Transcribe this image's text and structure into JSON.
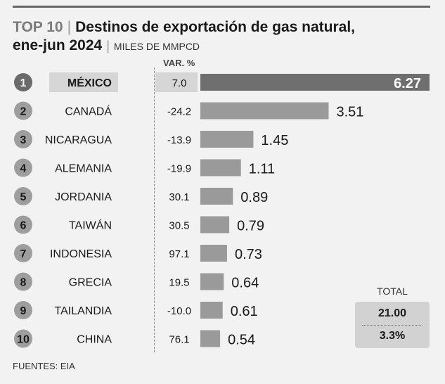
{
  "header": {
    "top_label": "TOP 10",
    "title": "Destinos de exportación de gas natural,",
    "subtitle": "ene-jun 2024",
    "unit": "MILES DE MMPCD",
    "separator": "|"
  },
  "var_header": "VAR. %",
  "chart_data": {
    "type": "bar",
    "orientation": "horizontal",
    "categories": [
      "MÉXICO",
      "CANADÁ",
      "NICARAGUA",
      "ALEMANIA",
      "JORDANIA",
      "TAIWÁN",
      "INDONESIA",
      "GRECIA",
      "TAILANDIA",
      "CHINA"
    ],
    "ranks": [
      "1",
      "2",
      "3",
      "4",
      "5",
      "6",
      "7",
      "8",
      "9",
      "10"
    ],
    "values": [
      6.27,
      3.51,
      1.45,
      1.11,
      0.89,
      0.79,
      0.73,
      0.64,
      0.61,
      0.54
    ],
    "value_labels": [
      "6.27",
      "3.51",
      "1.45",
      "1.11",
      "0.89",
      "0.79",
      "0.73",
      "0.64",
      "0.61",
      "0.54"
    ],
    "var_pct_labels": [
      "7.0",
      "-24.2",
      "-13.9",
      "-19.9",
      "30.1",
      "30.5",
      "97.1",
      "19.5",
      "-10.0",
      "76.1"
    ],
    "highlight_index": 0,
    "colors": {
      "highlight_bar": "#6f6f6f",
      "bar": "#9a9a9a",
      "rank_circle": "#9e9e9e",
      "rank_circle_highlight": "#6a6a6a"
    }
  },
  "total": {
    "label": "TOTAL",
    "value": "21.00",
    "var": "3.3%"
  },
  "footer": "FUENTES: EIA"
}
